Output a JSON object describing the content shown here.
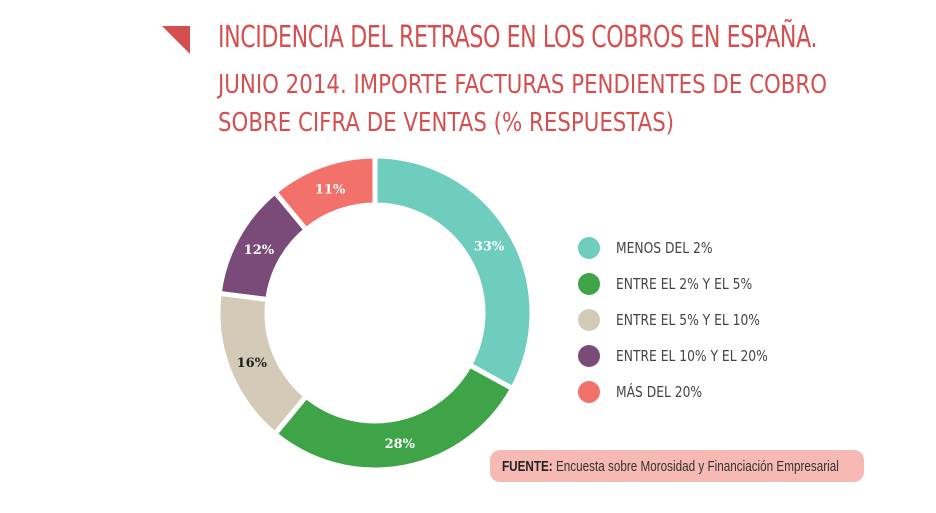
{
  "title": "INCIDENCIA DEL RETRASO EN LOS COBROS EN ESPAÑA.",
  "subtitle_line1": "JUNIO 2014. IMPORTE FACTURAS PENDIENTES DE COBRO",
  "subtitle_line2": "SOBRE CIFRA DE VENTAS (% RESPUESTAS)",
  "source": {
    "heading": "FUENTE:",
    "text": "Encuesta sobre Morosidad y Financiación Empresarial"
  },
  "colors": {
    "title": "#d45050",
    "source_background": "#f6b9b4"
  },
  "chart_data": {
    "type": "pie",
    "variant": "donut",
    "start_angle_deg": 0,
    "direction": "clockwise",
    "legend_position": "right",
    "series": [
      {
        "name": "MENOS DEL 2%",
        "value": 33,
        "label": "33%",
        "color": "#6fcdbd",
        "label_color": "#ffffff"
      },
      {
        "name": "ENTRE EL 2% Y EL 5%",
        "value": 28,
        "label": "28%",
        "color": "#3fa447",
        "label_color": "#ffffff"
      },
      {
        "name": "ENTRE EL 5% Y EL 10%",
        "value": 16,
        "label": "16%",
        "color": "#d3cbb8",
        "label_color": "#222222"
      },
      {
        "name": "ENTRE EL 10% Y EL 20%",
        "value": 12,
        "label": "12%",
        "color": "#7a4a78",
        "label_color": "#ffffff"
      },
      {
        "name": "MÁS DEL 20%",
        "value": 11,
        "label": "11%",
        "color": "#f2716b",
        "label_color": "#ffffff"
      }
    ]
  }
}
